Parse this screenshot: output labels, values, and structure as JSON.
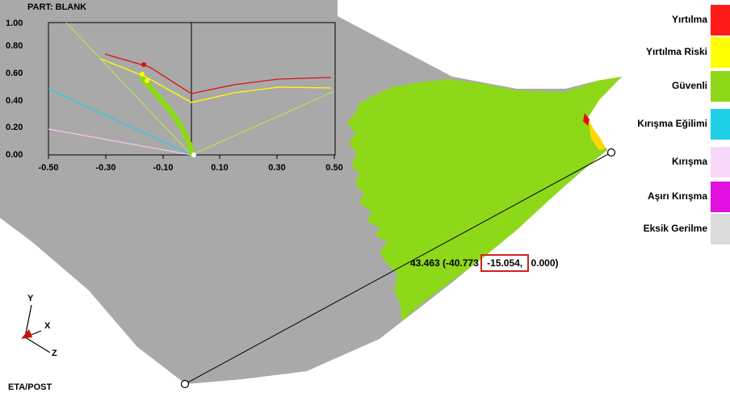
{
  "part_title": "PART:  BLANK",
  "brand": "ETA/POST",
  "axes": {
    "y_ticks": [
      "1.00",
      "0.80",
      "0.60",
      "0.40",
      "0.20",
      "0.00"
    ],
    "x_ticks": [
      "-0.50",
      "-0.30",
      "-0.10",
      "0.10",
      "0.30",
      "0.50"
    ]
  },
  "legend": [
    {
      "label": "Yırtılma",
      "color": "#ff1a1a"
    },
    {
      "label": "Yırtılma Riski",
      "color": "#ffff00"
    },
    {
      "label": "Güvenli",
      "color": "#8ed81a"
    },
    {
      "label": "Kırışma Eğilimi",
      "color": "#1ecfe8"
    },
    {
      "label": "Kırışma",
      "color": "#f8d8f8"
    },
    {
      "label": "Aşırı Kırışma",
      "color": "#e010e0"
    },
    {
      "label": "Eksik Gerilme",
      "color": "#dcdcdc"
    }
  ],
  "readout": {
    "value": "43.463",
    "x": "(-40.773",
    "y": "-15.054,",
    "z": "0.000)"
  },
  "triad": {
    "y": "Y",
    "x": "X",
    "z": "Z"
  },
  "colors": {
    "surface": "#a9a9a9",
    "safe_zone": "#8ed81a",
    "highlight_box": "#d32020"
  }
}
